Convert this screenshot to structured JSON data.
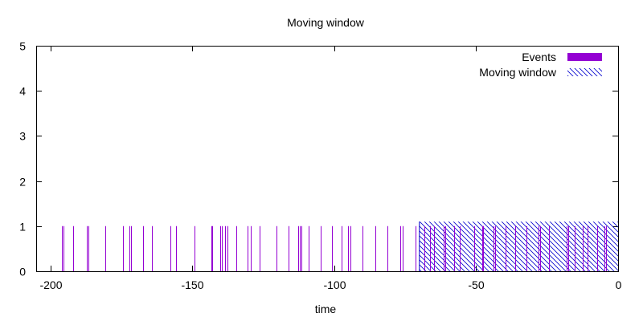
{
  "chart_data": {
    "type": "bar",
    "title": "Moving window",
    "xlabel": "time",
    "ylabel": "",
    "xlim": [
      -205,
      0
    ],
    "ylim": [
      0,
      5
    ],
    "xticks": [
      -200,
      -150,
      -100,
      -50,
      0
    ],
    "yticks": [
      0,
      1,
      2,
      3,
      4,
      5
    ],
    "legend_position": "top-right",
    "series": [
      {
        "name": "Events",
        "style": "impulse",
        "color": "#9400D3",
        "value": 1,
        "x": [
          -196,
          -195.3,
          -192,
          -187.1,
          -186.6,
          -180.7,
          -174.5,
          -172.1,
          -171.5,
          -167.3,
          -164.1,
          -157.7,
          -155.7,
          -149.3,
          -143.4,
          -143.1,
          -140.2,
          -139.6,
          -138.4,
          -137.7,
          -134.4,
          -130.4,
          -129.4,
          -126.4,
          -120.4,
          -116.1,
          -112.6,
          -112,
          -111.5,
          -108.9,
          -104.7,
          -100.7,
          -97.5,
          -95.1,
          -94.4,
          -89.9,
          -85.6,
          -81.3,
          -76.7,
          -76,
          -71.4,
          -68.2,
          -66.2,
          -64.9,
          -61.5,
          -60.9,
          -57.7,
          -55.7,
          -50.8,
          -47.9,
          -47.5,
          -43.9,
          -43.4,
          -39.6,
          -36.2,
          -32.2,
          -28.1,
          -27.4,
          -24.3,
          -18.1,
          -17.6,
          -15.4,
          -12.4,
          -10.8,
          -7.3,
          -4.7,
          -4.2
        ]
      },
      {
        "name": "Moving window",
        "style": "hatched-box",
        "color": "#0000CD",
        "x_from": -70,
        "x_to": 0,
        "value": 1.1
      }
    ]
  }
}
